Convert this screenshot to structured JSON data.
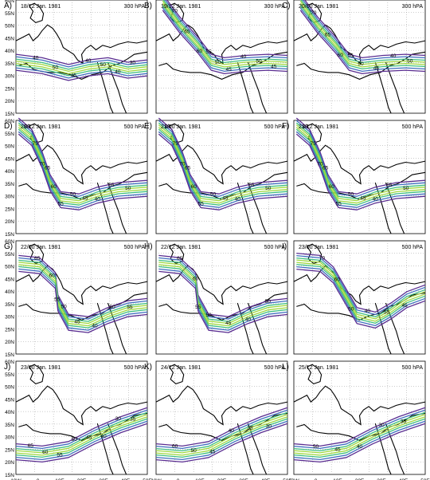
{
  "figure": {
    "x_tick_labels": [
      "10W",
      "0",
      "10E",
      "20E",
      "30E",
      "40E",
      "50E"
    ],
    "y_tick_labels": [
      "60N",
      "55N",
      "50N",
      "45N",
      "40N",
      "35N",
      "30N",
      "25N",
      "20N",
      "15N"
    ],
    "contour_colors": [
      "#5a2d91",
      "#7b5cc4",
      "#3f6fbf",
      "#2aa3b0",
      "#3fbf7f",
      "#9fd83f",
      "#f2e100"
    ]
  },
  "panels": [
    {
      "letter": "A)",
      "datetime": "18/12 Jan. 1981",
      "level": "300 hPA"
    },
    {
      "letter": "B)",
      "datetime": "19/12 Jan. 1981",
      "level": "300 hPA"
    },
    {
      "letter": "C)",
      "datetime": "20/00 Jan. 1981",
      "level": "300 hPA"
    },
    {
      "letter": "D)",
      "datetime": "20/12 Jan. 1981",
      "level": "500 hPA"
    },
    {
      "letter": "E)",
      "datetime": "21/00 Jan. 1981",
      "level": "500 hPA"
    },
    {
      "letter": "F)",
      "datetime": "21/12 Jan. 1981",
      "level": "500 hPA"
    },
    {
      "letter": "G)",
      "datetime": "22/00 Jan. 1981",
      "level": "500 hPA"
    },
    {
      "letter": "H)",
      "datetime": "22/12 Jan. 1981",
      "level": "500 hPA"
    },
    {
      "letter": "I)",
      "datetime": "23/00 Jan. 1981",
      "level": "500 hPA"
    },
    {
      "letter": "J)",
      "datetime": "23/00 Jan. 1981",
      "level": "500 hPA"
    },
    {
      "letter": "K)",
      "datetime": "24/12 Jan. 1981",
      "level": "500 hPA"
    },
    {
      "letter": "L)",
      "datetime": "25/12 Jan. 1981",
      "level": "500 hPA"
    }
  ],
  "contour_labels": [
    [
      "40",
      "50",
      "45",
      "40",
      "50",
      "40",
      "30"
    ],
    [
      "70",
      "65",
      "60",
      "55",
      "50",
      "45",
      "40",
      "50",
      "45"
    ],
    [
      "70",
      "65",
      "60",
      "55",
      "50",
      "45",
      "40",
      "50"
    ],
    [
      "80",
      "75",
      "70",
      "65",
      "60",
      "55",
      "50",
      "45",
      "40",
      "55",
      "50"
    ],
    [
      "80",
      "75",
      "70",
      "65",
      "60",
      "55",
      "50",
      "45",
      "40",
      "55",
      "50"
    ],
    [
      "80",
      "75",
      "70",
      "65",
      "60",
      "55",
      "50",
      "45",
      "40",
      "55",
      "50"
    ],
    [
      "65",
      "60",
      "55",
      "50",
      "45",
      "40",
      "50",
      "55"
    ],
    [
      "65",
      "60",
      "55",
      "50",
      "45",
      "40",
      "50"
    ],
    [
      "70",
      "60",
      "50",
      "40",
      "55",
      "45"
    ],
    [
      "65",
      "60",
      "55",
      "50",
      "45",
      "40",
      "30",
      "35"
    ],
    [
      "60",
      "50",
      "45",
      "40",
      "35",
      "30"
    ],
    [
      "50",
      "45",
      "40",
      "30",
      "35"
    ]
  ]
}
